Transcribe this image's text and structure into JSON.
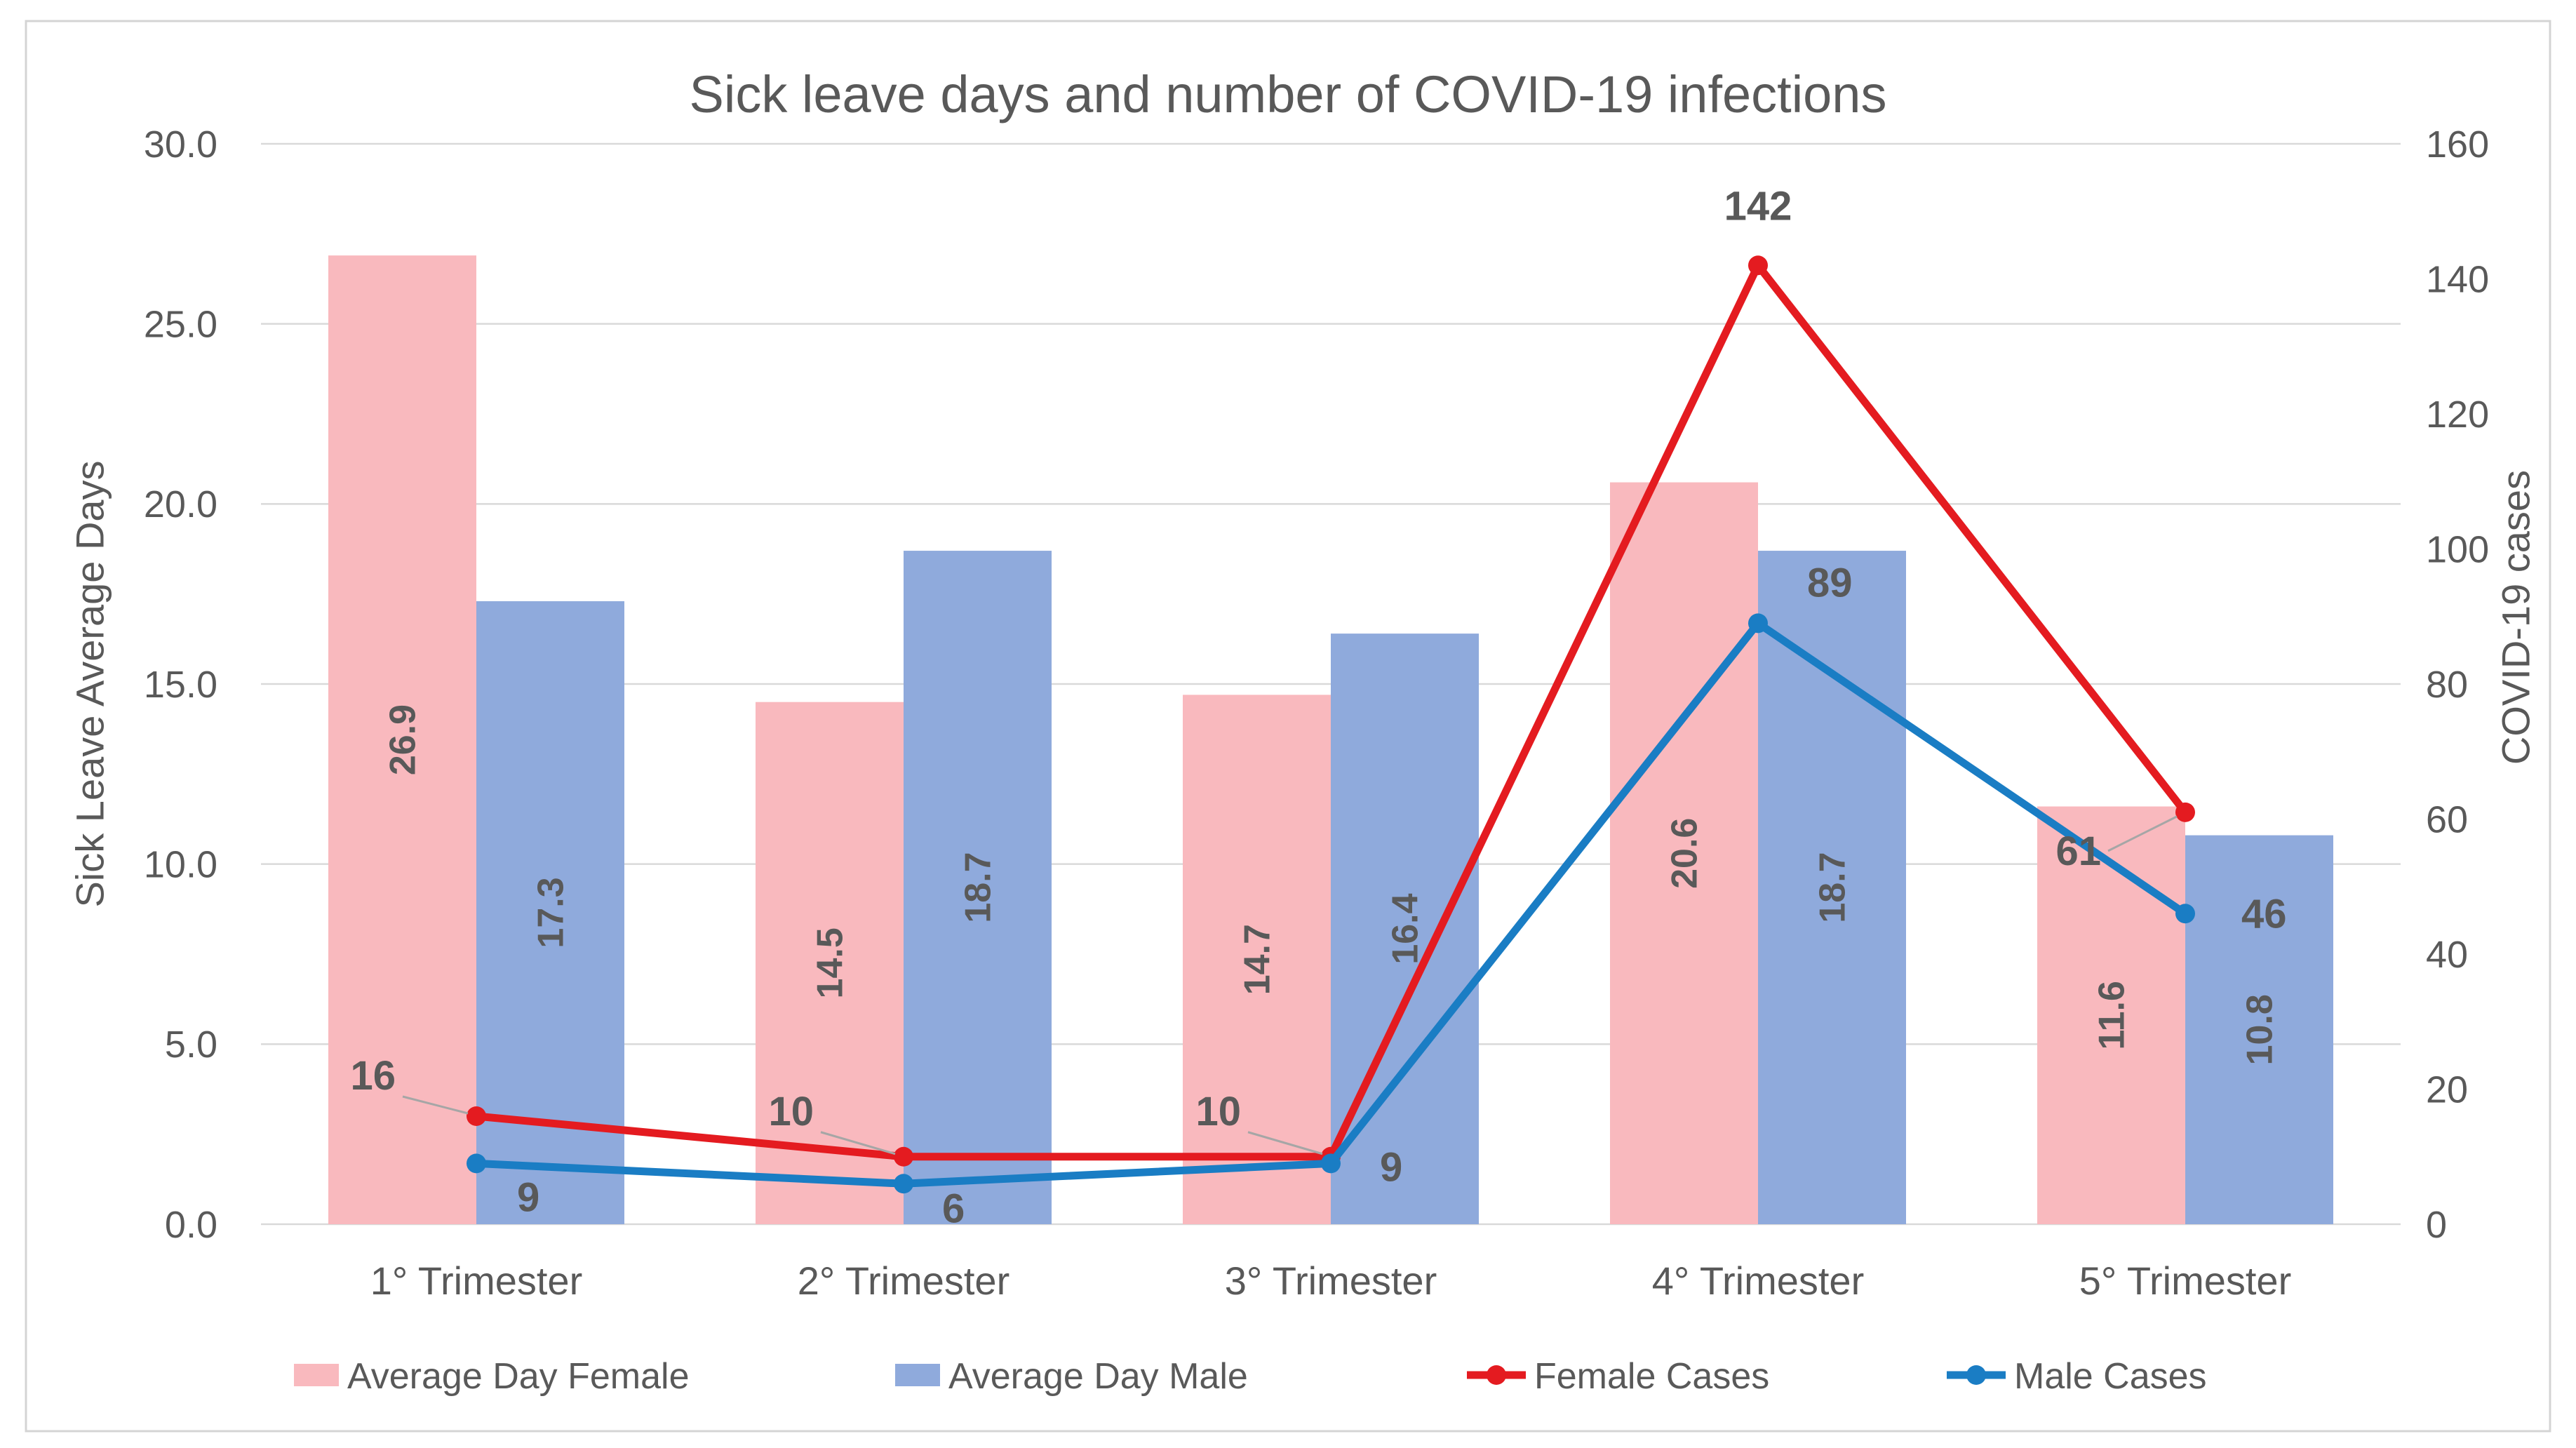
{
  "title": "Sick leave days and number of COVID-19 infections",
  "chart_data": {
    "type": "bar+line combo",
    "title": "Sick leave days and number of COVID-19 infections",
    "categories": [
      "1° Trimester",
      "2° Trimester",
      "3° Trimester",
      "4° Trimester",
      "5° Trimester"
    ],
    "series": [
      {
        "name": "Average Day Female",
        "type": "bar",
        "axis": "left",
        "color": "#f9b9be",
        "values": [
          26.9,
          14.5,
          14.7,
          20.6,
          11.6
        ]
      },
      {
        "name": "Average Day Male",
        "type": "bar",
        "axis": "left",
        "color": "#8faadc",
        "values": [
          17.3,
          18.7,
          16.4,
          18.7,
          10.8
        ]
      },
      {
        "name": "Female Cases",
        "type": "line",
        "axis": "right",
        "color": "#e41b20",
        "values": [
          16,
          10,
          10,
          142,
          61
        ]
      },
      {
        "name": "Male Cases",
        "type": "line",
        "axis": "right",
        "color": "#1a7dc4",
        "values": [
          9,
          6,
          9,
          89,
          46
        ]
      }
    ],
    "left_axis": {
      "title": "Sick Leave Average Days",
      "min": 0,
      "max": 30,
      "step": 5,
      "tick_labels": [
        "0.0",
        "5.0",
        "10.0",
        "15.0",
        "20.0",
        "25.0",
        "30.0"
      ]
    },
    "right_axis": {
      "title": "COVID-19 cases",
      "min": 0,
      "max": 160,
      "step": 20,
      "tick_labels": [
        "0",
        "20",
        "40",
        "60",
        "80",
        "100",
        "120",
        "140",
        "160"
      ]
    },
    "legend_position": "bottom",
    "grid": true
  },
  "colors": {
    "text": "#595959",
    "grid": "#d9d9d9",
    "frame_border": "#d4d4d4",
    "bar_label": "#3b3b3b",
    "female_cases_label": "#e41b20",
    "male_cases_label": "#1f3864",
    "leader_line": "#a6a6a6"
  }
}
